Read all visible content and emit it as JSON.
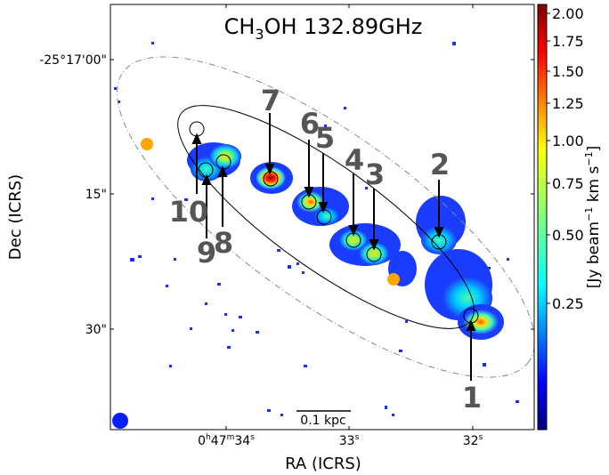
{
  "title": "CH3OH 132.89GHz",
  "title_parts": {
    "pre": "CH",
    "sub": "3",
    "post": "OH 132.89GHz"
  },
  "y_axis_label": "Dec (ICRS)",
  "x_axis_label": "RA (ICRS)",
  "y_ticks": [
    "-25°17'00\"",
    "15\"",
    "30\""
  ],
  "x_ticks": [
    {
      "main": "0",
      "sup1": "h",
      "mid1": "47",
      "sup2": "m",
      "mid2": "34",
      "sup3": "s"
    },
    {
      "main": "33",
      "sup1": "s"
    },
    {
      "main": "32",
      "sup1": "s"
    }
  ],
  "scalebar_label": "0.1 kpc",
  "colorbar": {
    "label_pre": "[Jy beam",
    "label_sup1": "−1",
    "label_mid": " km s",
    "label_sup2": "−1",
    "label_post": "]",
    "ticks": [
      "2.00",
      "1.75",
      "1.50",
      "1.25",
      "1.00",
      "0.75",
      "0.50",
      "0.25"
    ]
  },
  "region_labels": [
    "1",
    "2",
    "3",
    "4",
    "5",
    "6",
    "7",
    "8",
    "9",
    "10"
  ],
  "colors": {
    "beam": "#0a1fff",
    "marker": "#ffa500"
  }
}
